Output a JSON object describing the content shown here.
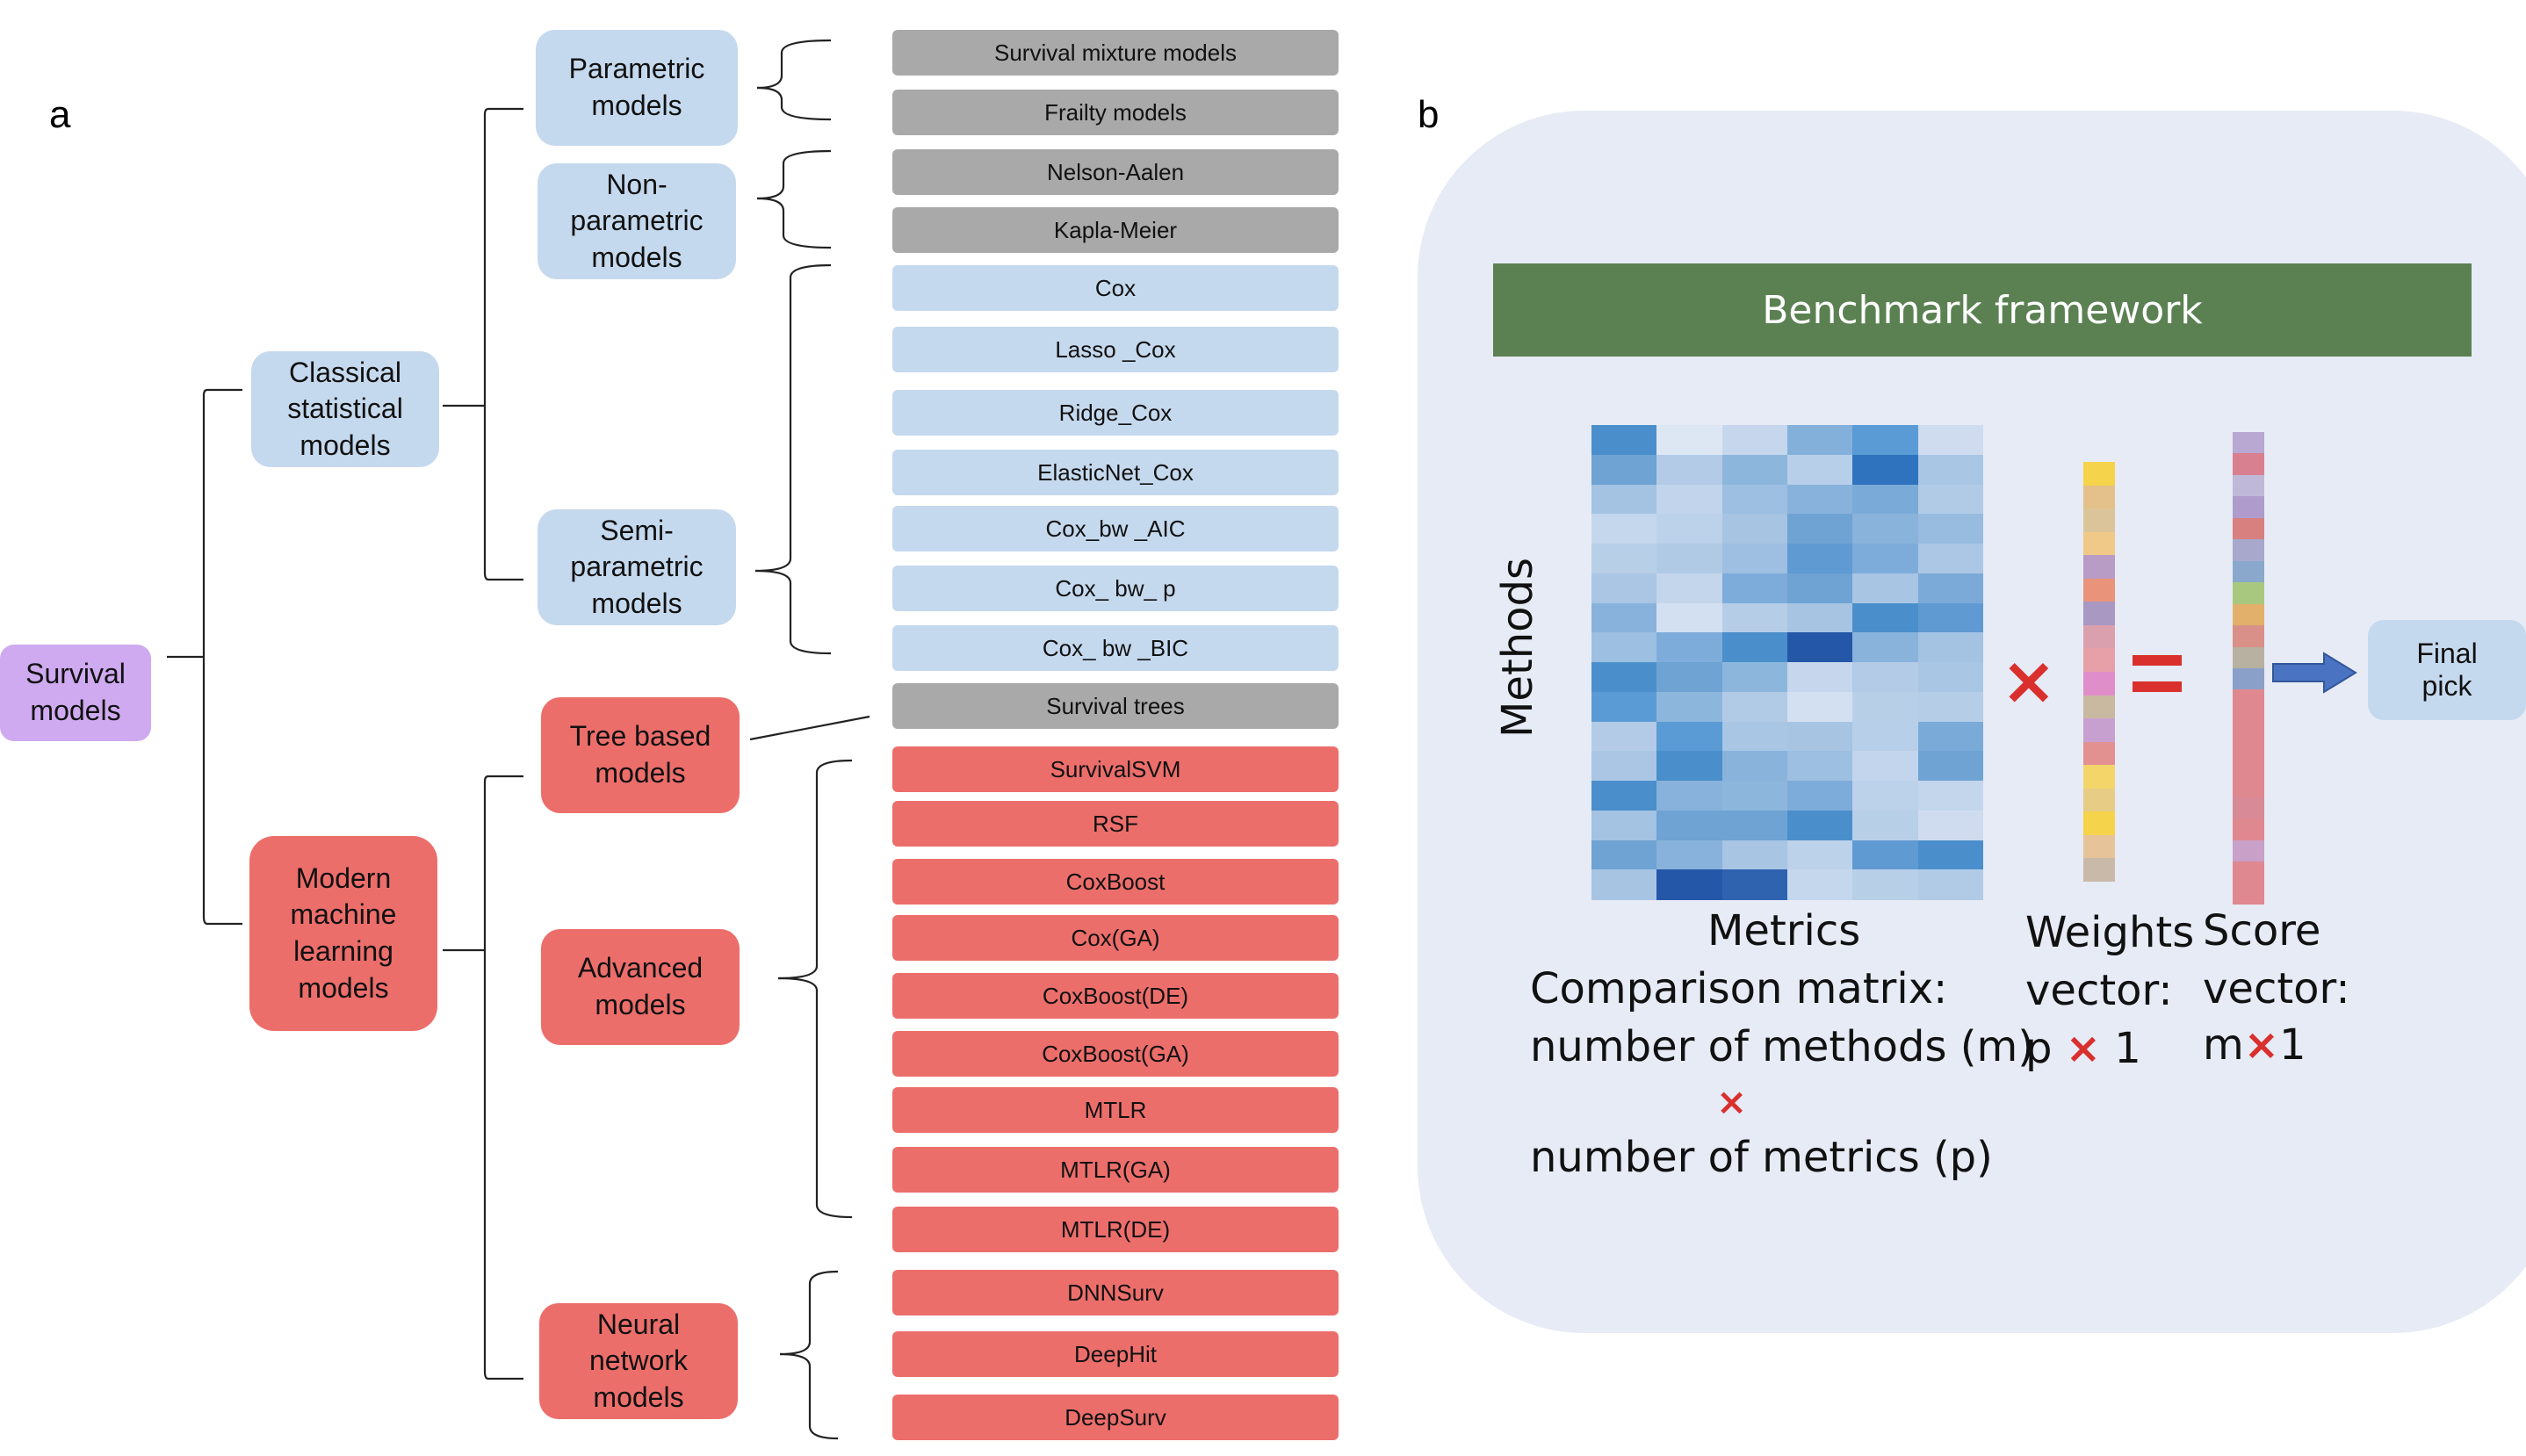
{
  "panel_a": {
    "letter": "a",
    "root": "Survival\nmodels",
    "level1": {
      "classical": "Classical\nstatistical\nmodels",
      "modern": "Modern\nmachine\nlearning\nmodels"
    },
    "level2": {
      "parametric": "Parametric\nmodels",
      "nonparametric": "Non-\nparametric\nmodels",
      "semiparametric": "Semi-\nparametric\nmodels",
      "tree": "Tree based\nmodels",
      "advanced": "Advanced\nmodels",
      "neural": "Neural\nnetwork\nmodels"
    },
    "leaves": [
      "Survival mixture models",
      "Frailty models",
      "Nelson-Aalen",
      "Kapla-Meier",
      "Cox",
      "Lasso _Cox",
      "Ridge_Cox",
      "ElasticNet_Cox",
      "Cox_bw _AIC",
      "Cox_ bw_ p",
      "Cox_ bw _BIC",
      "Survival trees",
      "SurvivalSVM",
      "RSF",
      "CoxBoost",
      "Cox(GA)",
      "CoxBoost(DE)",
      "CoxBoost(GA)",
      "MTLR",
      "MTLR(GA)",
      "MTLR(DE)",
      "DNNSurv",
      "DeepHit",
      "DeepSurv"
    ],
    "colors": {
      "gray": "#a9a9a9",
      "blue": "#c5d9ee",
      "red": "#ec6e6b",
      "purple": "#cfaaf0"
    }
  },
  "panel_b": {
    "letter": "b",
    "banner": "Benchmark framework",
    "methods_label": "Methods",
    "metrics_label": "Metrics",
    "comparison_line1": "Comparison matrix:",
    "comparison_line2": "number of methods (m)",
    "comparison_x": "×",
    "comparison_line3": "number of metrics (p)",
    "weights_line1": "Weights",
    "weights_line2": "vector:",
    "weights_dim_p": "p",
    "weights_dim_x": "×",
    "weights_dim_1": "1",
    "score_line1": "Score",
    "score_line2": "vector:",
    "score_dim_m": "m",
    "score_dim_x": "×",
    "score_dim_1": "1",
    "final_pick": "Final\npick",
    "colors": {
      "banner": "#5b8152",
      "panel_bg": "#e6ebf6",
      "operator": "#d9302e",
      "arrow": "#4a74c2"
    },
    "heatmap_colors": [
      [
        "#4a8fcb",
        "#dde6f3",
        "#c6d6ec",
        "#83b0da",
        "#5b9bd5",
        "#cfdcf0"
      ],
      [
        "#6ea3d3",
        "#b3cbe6",
        "#8db6dd",
        "#b7cfe8",
        "#2f73be",
        "#a9c6e4"
      ],
      [
        "#a4c2e2",
        "#c1d4ec",
        "#9dbfe1",
        "#88b2db",
        "#7aaad8",
        "#b1cbe6"
      ],
      [
        "#c5d7ec",
        "#bcd1ea",
        "#a7c4e3",
        "#6ea3d3",
        "#8ab3dc",
        "#98bbe0"
      ],
      [
        "#b8cfe8",
        "#b0cae6",
        "#9ebfe1",
        "#5f9ad2",
        "#7eacda",
        "#acc7e5"
      ],
      [
        "#aac6e4",
        "#c4d6ec",
        "#7eacda",
        "#6ea3d3",
        "#a9c5e4",
        "#7caad8"
      ],
      [
        "#88b2db",
        "#d3e0f1",
        "#b6cde8",
        "#a7c4e3",
        "#4a8fcb",
        "#5f9ad2"
      ],
      [
        "#9dbfe1",
        "#7eacda",
        "#4a8fcb",
        "#2557a8",
        "#8ab3dc",
        "#a4c2e2"
      ],
      [
        "#4a8fcb",
        "#6ea3d3",
        "#8db6dd",
        "#c6d6ec",
        "#b3cbe6",
        "#a9c6e4"
      ],
      [
        "#5b9bd5",
        "#8db6dd",
        "#b1cbe6",
        "#d3e0f1",
        "#b8cfe8",
        "#b6cde8"
      ],
      [
        "#b3cbe6",
        "#5b9bd5",
        "#a9c6e4",
        "#a7c4e3",
        "#b7cfe8",
        "#7aaad8"
      ],
      [
        "#aac6e4",
        "#4a8fcb",
        "#8ab3dc",
        "#9dbfe1",
        "#c3d5ec",
        "#6ea3d3"
      ],
      [
        "#4a8fcb",
        "#88b2db",
        "#8db6dd",
        "#7eacda",
        "#bcd1ea",
        "#c4d6ec"
      ],
      [
        "#a4c2e2",
        "#6ea3d3",
        "#6ea3d3",
        "#4a8fcb",
        "#b8cfe8",
        "#cfdcf0"
      ],
      [
        "#6ea3d3",
        "#88b2db",
        "#a9c5e4",
        "#bcd1ea",
        "#5f9ad2",
        "#4a8fcb"
      ],
      [
        "#a7c4e3",
        "#2557a8",
        "#2f63b0",
        "#c5d7ec",
        "#b8cfe8",
        "#b1cbe6"
      ]
    ],
    "weights_colors": [
      "#f5d34a",
      "#e4c08a",
      "#dcc49a",
      "#f0c988",
      "#b99cc6",
      "#e9947a",
      "#a898c2",
      "#dba0ae",
      "#e7a0a8",
      "#df8ec9",
      "#c9b9a0",
      "#c7a0d0",
      "#e39090",
      "#f4d56a",
      "#e7cc86",
      "#f5d34a",
      "#e7c39a",
      "#c9b9a8"
    ],
    "score_colors": [
      "#b8a8d2",
      "#d88090",
      "#c0b8d8",
      "#b09ccc",
      "#d88080",
      "#a8a8cc",
      "#8aa8cc",
      "#a8c880",
      "#e2b06a",
      "#d89088",
      "#b8b0a0",
      "#8aa0c8",
      "#e08890",
      "#e08890",
      "#e08890",
      "#e08890",
      "#e08890",
      "#d88a96",
      "#e08890",
      "#c8a0c8",
      "#e08890",
      "#e08890"
    ]
  }
}
